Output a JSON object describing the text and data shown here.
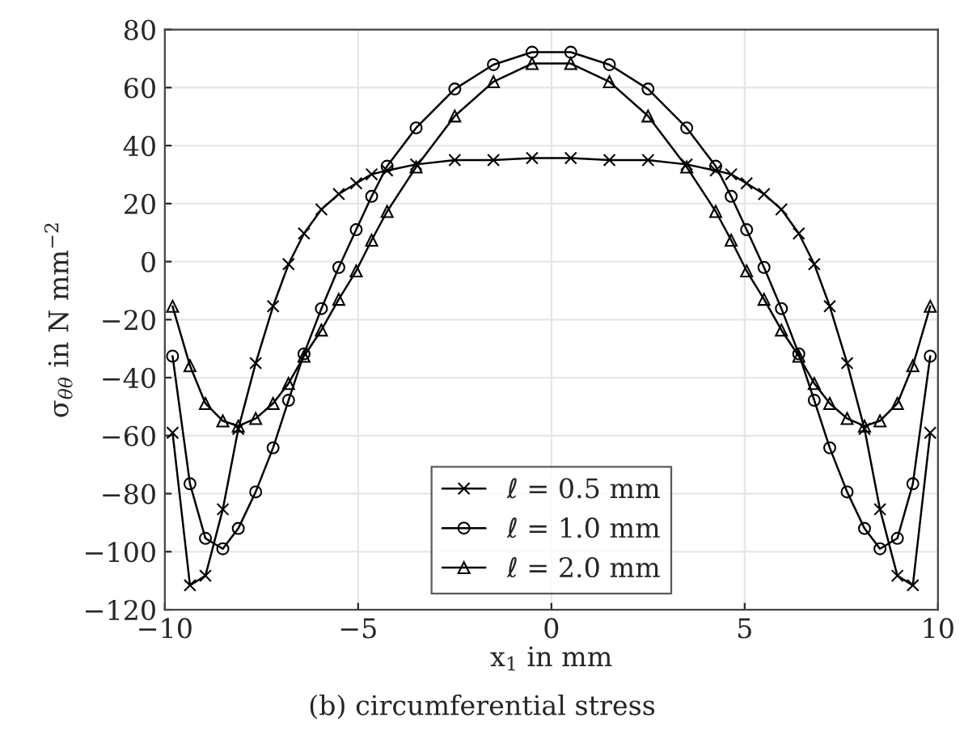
{
  "chart_data": {
    "type": "line",
    "xlabel": "x$_{1}$ in mm",
    "ylabel": "σ$_{θθ}$ in N mm$^{−2}$",
    "annotations": [
      "(b) circumferential stress"
    ],
    "x": [
      -9.8,
      -9.35,
      -8.95,
      -8.5,
      -8.1,
      -7.65,
      -7.2,
      -6.8,
      -6.4,
      -5.95,
      -5.5,
      -5.05,
      -4.65,
      -4.25,
      -3.5,
      -2.5,
      -1.5,
      -0.5,
      0.5,
      1.5,
      2.5,
      3.5,
      4.25,
      4.65,
      5.05,
      5.5,
      5.95,
      6.4,
      6.8,
      7.2,
      7.65,
      8.1,
      8.5,
      8.95,
      9.35,
      9.8
    ],
    "series": [
      {
        "name": "ℓ = 0.5 mm",
        "color": "#000000",
        "marker": "cross",
        "values": [
          -59,
          -111.6,
          -108.3,
          -85.4,
          -57.7,
          -35,
          -15.4,
          -0.9,
          9.7,
          18,
          23.3,
          27,
          30.1,
          31.4,
          33.5,
          35,
          35,
          35.7,
          35.7,
          35,
          35,
          33.5,
          31.4,
          30.1,
          27,
          23.3,
          18,
          9.7,
          -0.9,
          -15.4,
          -35,
          -57.7,
          -85.4,
          -108.3,
          -111.6,
          -59
        ]
      },
      {
        "name": "ℓ = 1.0 mm",
        "color": "#000000",
        "marker": "circle",
        "values": [
          -32.6,
          -76.6,
          -95.4,
          -99,
          -92,
          -79.4,
          -64.2,
          -47.8,
          -31.8,
          -16.2,
          -2,
          11,
          22.5,
          32.9,
          46.1,
          59.5,
          67.9,
          72.2,
          72.2,
          67.9,
          59.5,
          46.1,
          32.9,
          22.5,
          11,
          -2,
          -16.2,
          -31.8,
          -47.8,
          -64.2,
          -79.4,
          -92,
          -99,
          -95.4,
          -76.6,
          -32.6
        ]
      },
      {
        "name": "ℓ = 2.0 mm",
        "color": "#000000",
        "marker": "triangle",
        "values": [
          -15.4,
          -35.9,
          -48.9,
          -54.9,
          -56.7,
          -54.1,
          -48.9,
          -42,
          -32.6,
          -23.6,
          -13,
          -3.2,
          7.4,
          17.3,
          32.6,
          50.2,
          62,
          68.3,
          68.3,
          62,
          50.2,
          32.6,
          17.3,
          7.4,
          -3.2,
          -13,
          -23.6,
          -32.6,
          -42,
          -48.9,
          -54.1,
          -56.7,
          -54.9,
          -48.9,
          -35.9,
          -15.4
        ]
      }
    ],
    "xlim": [
      -10,
      10
    ],
    "xticks": [
      {
        "value": -10,
        "label": "−10"
      },
      {
        "value": -5,
        "label": "−5"
      },
      0,
      5,
      10
    ],
    "ylim": [
      -120,
      80
    ],
    "yticks": [
      {
        "value": -120,
        "label": "−120"
      },
      {
        "value": -100,
        "label": "−100"
      },
      {
        "value": -80,
        "label": "−80"
      },
      {
        "value": -60,
        "label": "−60"
      },
      {
        "value": -40,
        "label": "−40"
      },
      {
        "value": -20,
        "label": "−20"
      },
      0,
      20,
      40,
      60,
      80
    ],
    "grid": true,
    "legend": "bottom",
    "line_style": "solid"
  }
}
